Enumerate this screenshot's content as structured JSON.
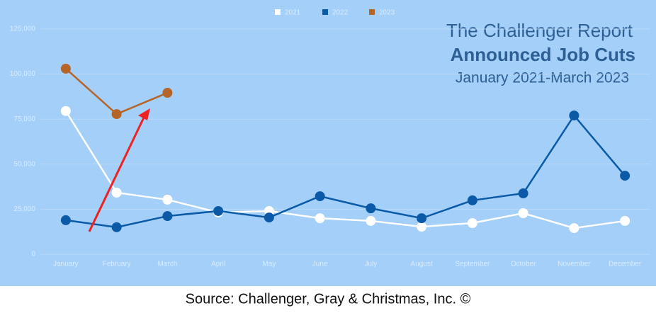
{
  "chart_data": {
    "type": "line",
    "title": "The Challenger Report",
    "subtitle": "Announced Job Cuts",
    "period": "January 2021-March 2023",
    "source": "Source: Challenger, Gray & Christmas, Inc. ©",
    "categories": [
      "January",
      "February",
      "March",
      "April",
      "May",
      "June",
      "July",
      "August",
      "September",
      "October",
      "November",
      "December"
    ],
    "series": [
      {
        "name": "2021",
        "color": "#ffffff",
        "values": [
          79500,
          34200,
          30300,
          23200,
          24000,
          20000,
          18500,
          15300,
          17300,
          22800,
          14500,
          18500
        ]
      },
      {
        "name": "2022",
        "color": "#0a5aa8",
        "values": [
          18900,
          15000,
          21200,
          24000,
          20400,
          32200,
          25500,
          20000,
          29900,
          33800,
          77000,
          43600
        ]
      },
      {
        "name": "2023",
        "color": "#b5652a",
        "values": [
          103000,
          77800,
          89600,
          null,
          null,
          null,
          null,
          null,
          null,
          null,
          null,
          null
        ]
      }
    ],
    "ylim": [
      0,
      125000
    ],
    "yticks": [
      0,
      {
        "value": 25000,
        "label": "25,000"
      },
      {
        "value": 50000,
        "label": "50,000"
      },
      {
        "value": 75000,
        "label": "75,000"
      },
      {
        "value": 100000,
        "label": "100,000"
      },
      {
        "value": 125000,
        "label": "125,000"
      }
    ],
    "grid": true,
    "legend": "top"
  }
}
